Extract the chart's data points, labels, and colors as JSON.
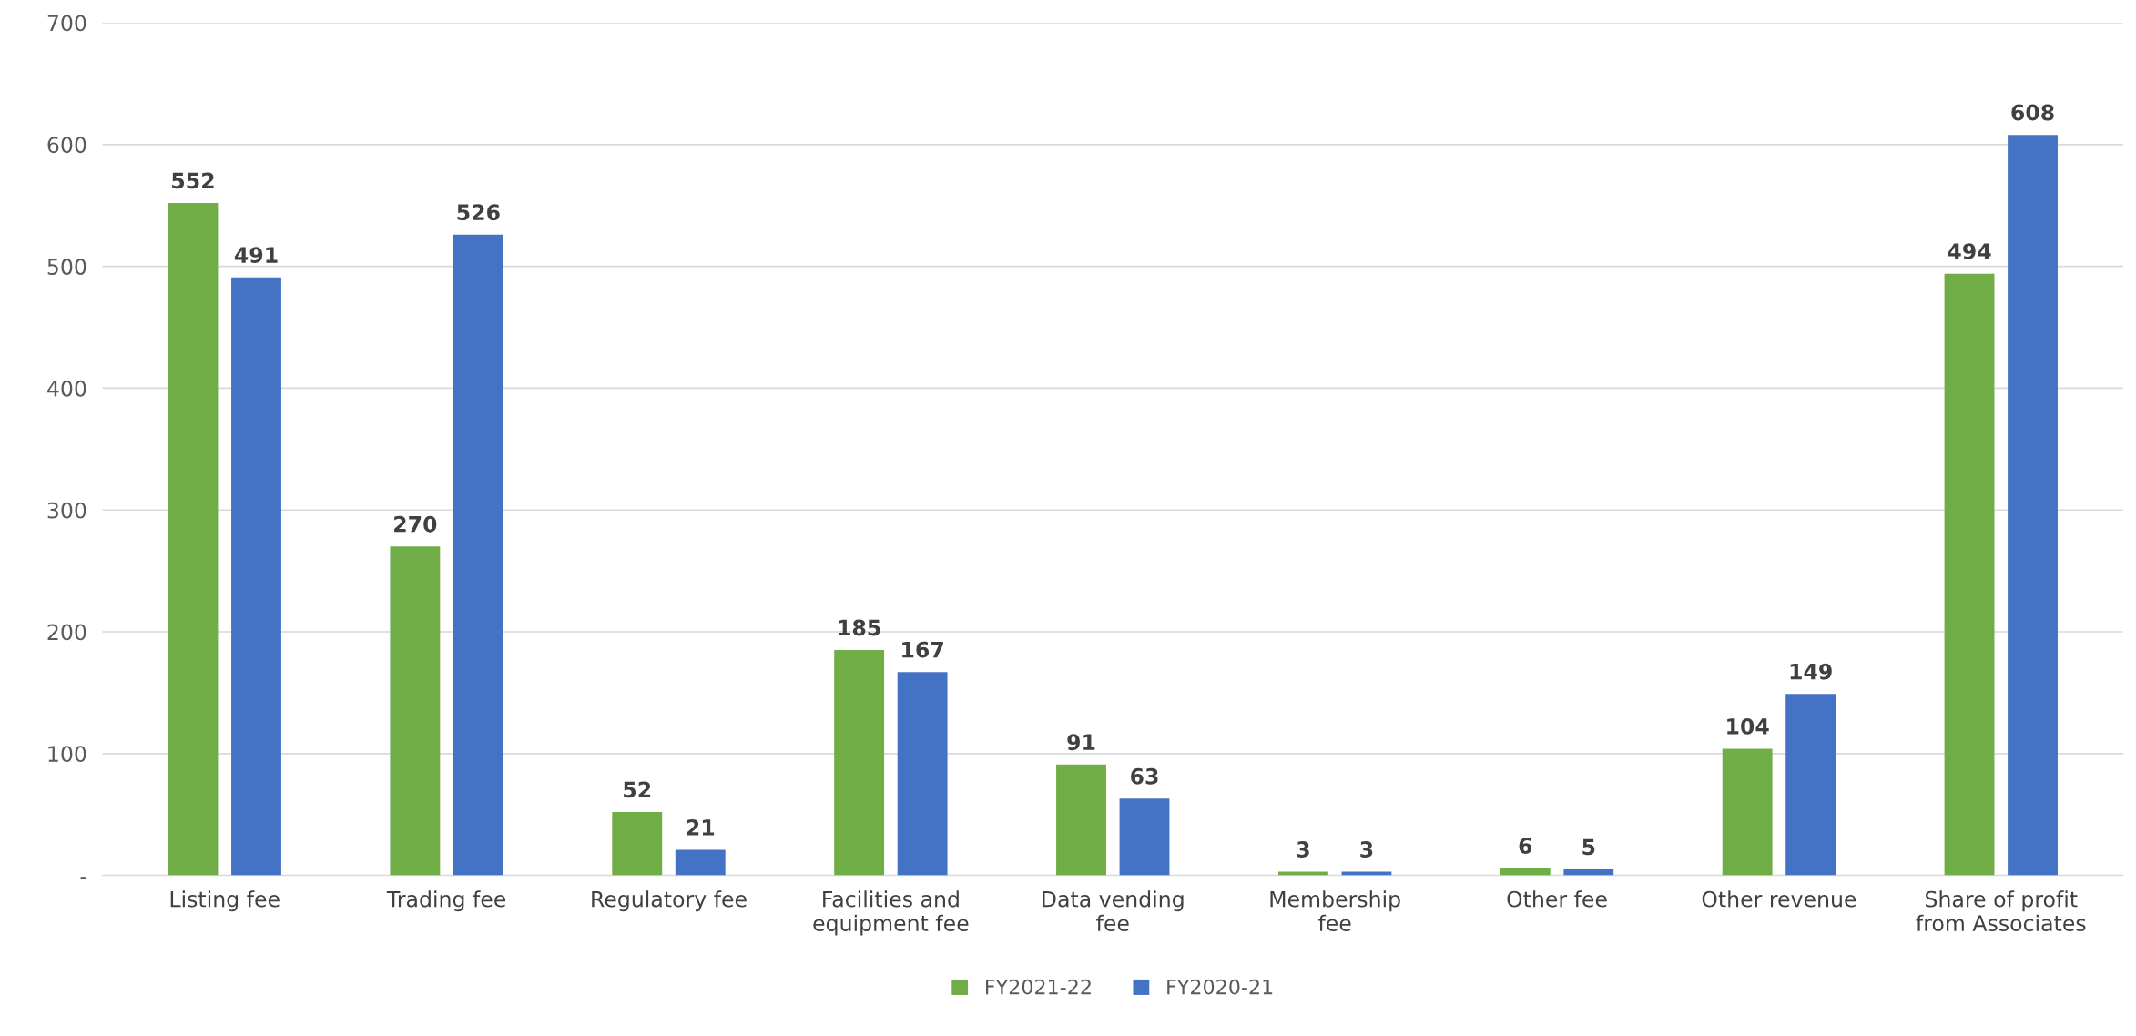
{
  "chart_data": {
    "type": "bar",
    "categories": [
      "Listing fee",
      "Trading fee",
      "Regulatory fee",
      "Facilities and\nequipment fee",
      "Data vending\nfee",
      "Membership\nfee",
      "Other fee",
      "Other revenue",
      "Share of profit\nfrom Associates"
    ],
    "series": [
      {
        "name": "FY2021-22",
        "color": "#70ad47",
        "values": [
          552,
          270,
          52,
          185,
          91,
          3,
          6,
          104,
          494
        ]
      },
      {
        "name": "FY2020-21",
        "color": "#4472c4",
        "values": [
          491,
          526,
          21,
          167,
          63,
          3,
          5,
          149,
          608
        ]
      }
    ],
    "ylim": [
      0,
      700
    ],
    "yticks": [
      {
        "value": 0,
        "label": "-"
      },
      100,
      200,
      300,
      400,
      500,
      600,
      700
    ],
    "grid": "y",
    "legend": "bottom",
    "data_labels": true
  }
}
